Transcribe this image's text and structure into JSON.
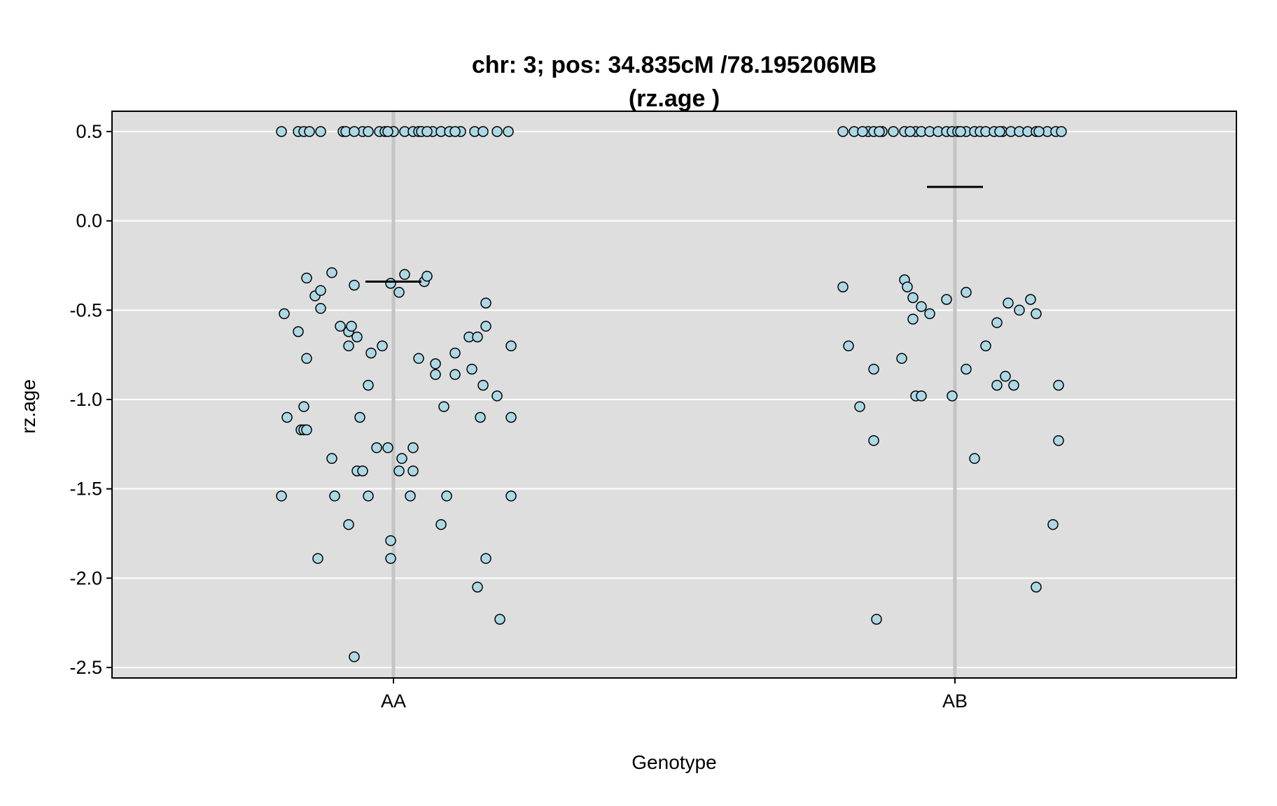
{
  "chart_data": {
    "type": "scatter",
    "title": "chr: 3; pos: 34.835cM /78.195206MB",
    "subtitle": "(rz.age )",
    "xlabel": "Genotype",
    "ylabel": "rz.age",
    "categories": [
      "AA",
      "AB"
    ],
    "ylim": [
      -2.55,
      0.62
    ],
    "yticks": [
      0.5,
      0.0,
      -0.5,
      -1.0,
      -1.5,
      -2.0,
      -2.5
    ],
    "ytick_labels": [
      "0.5",
      "0.0",
      "-0.5",
      "-1.0",
      "-1.5",
      "-2.0",
      "-2.5"
    ],
    "grid": true,
    "colors": {
      "panel_bg": "#dedede",
      "grid": "#ffffff",
      "category_line": "#c4c4c4",
      "point_fill": "#add8e6",
      "point_stroke": "#000000",
      "mean_line": "#000000"
    },
    "means": [
      {
        "category": "AA",
        "value": -0.34
      },
      {
        "category": "AB",
        "value": 0.19
      }
    ],
    "series": [
      {
        "category": "AA",
        "points": [
          [
            -0.4,
            0.5
          ],
          [
            -0.34,
            0.5
          ],
          [
            -0.32,
            0.5
          ],
          [
            -0.3,
            0.5
          ],
          [
            -0.26,
            0.5
          ],
          [
            -0.18,
            0.5
          ],
          [
            -0.17,
            0.5
          ],
          [
            -0.11,
            0.5
          ],
          [
            -0.05,
            0.5
          ],
          [
            -0.03,
            0.5
          ],
          [
            0.0,
            0.5
          ],
          [
            0.04,
            0.5
          ],
          [
            0.07,
            0.5
          ],
          [
            0.09,
            0.5
          ],
          [
            0.1,
            0.5
          ],
          [
            0.14,
            0.5
          ],
          [
            0.17,
            0.5
          ],
          [
            0.2,
            0.5
          ],
          [
            0.24,
            0.5
          ],
          [
            0.29,
            0.5
          ],
          [
            0.32,
            0.5
          ],
          [
            0.37,
            0.5
          ],
          [
            0.41,
            0.5
          ],
          [
            -0.02,
            0.5
          ],
          [
            -0.09,
            0.5
          ],
          [
            -0.14,
            0.5
          ],
          [
            0.12,
            0.5
          ],
          [
            0.22,
            0.5
          ],
          [
            -0.39,
            -0.52
          ],
          [
            -0.34,
            -0.62
          ],
          [
            -0.31,
            -0.32
          ],
          [
            -0.31,
            -0.77
          ],
          [
            -0.28,
            -0.42
          ],
          [
            -0.26,
            -0.39
          ],
          [
            -0.26,
            -0.49
          ],
          [
            -0.22,
            -0.29
          ],
          [
            -0.19,
            -0.59
          ],
          [
            -0.16,
            -0.62
          ],
          [
            -0.15,
            -0.59
          ],
          [
            -0.16,
            -0.7
          ],
          [
            -0.14,
            -0.36
          ],
          [
            -0.13,
            -0.65
          ],
          [
            -0.08,
            -0.74
          ],
          [
            -0.04,
            -0.7
          ],
          [
            -0.01,
            -0.35
          ],
          [
            0.02,
            -0.4
          ],
          [
            0.04,
            -0.3
          ],
          [
            0.11,
            -0.34
          ],
          [
            0.12,
            -0.31
          ],
          [
            -0.09,
            -0.92
          ],
          [
            0.09,
            -0.77
          ],
          [
            0.15,
            -0.8
          ],
          [
            0.15,
            -0.86
          ],
          [
            0.22,
            -0.74
          ],
          [
            0.22,
            -0.86
          ],
          [
            0.27,
            -0.65
          ],
          [
            0.3,
            -0.65
          ],
          [
            0.32,
            -0.92
          ],
          [
            0.33,
            -0.46
          ],
          [
            0.33,
            -0.59
          ],
          [
            0.37,
            -0.98
          ],
          [
            0.42,
            -0.7
          ],
          [
            0.28,
            -0.83
          ],
          [
            -0.38,
            -1.1
          ],
          [
            -0.33,
            -1.17
          ],
          [
            -0.32,
            -1.17
          ],
          [
            -0.31,
            -1.17
          ],
          [
            -0.32,
            -1.04
          ],
          [
            -0.12,
            -1.1
          ],
          [
            -0.06,
            -1.27
          ],
          [
            -0.02,
            -1.27
          ],
          [
            0.07,
            -1.27
          ],
          [
            0.18,
            -1.04
          ],
          [
            0.31,
            -1.1
          ],
          [
            0.42,
            -1.1
          ],
          [
            -0.4,
            -1.54
          ],
          [
            -0.22,
            -1.33
          ],
          [
            -0.21,
            -1.54
          ],
          [
            -0.16,
            -1.7
          ],
          [
            -0.13,
            -1.4
          ],
          [
            -0.11,
            -1.4
          ],
          [
            -0.09,
            -1.54
          ],
          [
            0.02,
            -1.4
          ],
          [
            0.03,
            -1.33
          ],
          [
            0.06,
            -1.54
          ],
          [
            0.07,
            -1.4
          ],
          [
            0.17,
            -1.7
          ],
          [
            0.19,
            -1.54
          ],
          [
            0.42,
            -1.54
          ],
          [
            -0.27,
            -1.89
          ],
          [
            -0.01,
            -1.79
          ],
          [
            -0.01,
            -1.89
          ],
          [
            0.33,
            -1.89
          ],
          [
            0.3,
            -2.05
          ],
          [
            0.38,
            -2.23
          ],
          [
            -0.14,
            -2.44
          ]
        ]
      },
      {
        "category": "AB",
        "points": [
          [
            -0.4,
            0.5
          ],
          [
            -0.36,
            0.5
          ],
          [
            -0.31,
            0.5
          ],
          [
            -0.29,
            0.5
          ],
          [
            -0.26,
            0.5
          ],
          [
            -0.22,
            0.5
          ],
          [
            -0.18,
            0.5
          ],
          [
            -0.14,
            0.5
          ],
          [
            -0.12,
            0.5
          ],
          [
            -0.09,
            0.5
          ],
          [
            -0.06,
            0.5
          ],
          [
            -0.03,
            0.5
          ],
          [
            -0.01,
            0.5
          ],
          [
            0.01,
            0.5
          ],
          [
            0.04,
            0.5
          ],
          [
            0.07,
            0.5
          ],
          [
            0.09,
            0.5
          ],
          [
            0.11,
            0.5
          ],
          [
            0.14,
            0.5
          ],
          [
            0.17,
            0.5
          ],
          [
            0.2,
            0.5
          ],
          [
            0.23,
            0.5
          ],
          [
            0.26,
            0.5
          ],
          [
            0.29,
            0.5
          ],
          [
            0.33,
            0.5
          ],
          [
            0.36,
            0.5
          ],
          [
            0.38,
            0.5
          ],
          [
            -0.33,
            0.5
          ],
          [
            -0.27,
            0.5
          ],
          [
            -0.16,
            0.5
          ],
          [
            0.02,
            0.5
          ],
          [
            0.16,
            0.5
          ],
          [
            0.3,
            0.5
          ],
          [
            -0.4,
            -0.37
          ],
          [
            -0.38,
            -0.7
          ],
          [
            -0.34,
            -1.04
          ],
          [
            -0.29,
            -0.83
          ],
          [
            -0.29,
            -1.23
          ],
          [
            -0.19,
            -0.77
          ],
          [
            -0.18,
            -0.33
          ],
          [
            -0.17,
            -0.37
          ],
          [
            -0.15,
            -0.43
          ],
          [
            -0.15,
            -0.55
          ],
          [
            -0.12,
            -0.48
          ],
          [
            -0.09,
            -0.52
          ],
          [
            -0.03,
            -0.44
          ],
          [
            -0.14,
            -0.98
          ],
          [
            -0.12,
            -0.98
          ],
          [
            -0.01,
            -0.98
          ],
          [
            0.04,
            -0.4
          ],
          [
            0.04,
            -0.83
          ],
          [
            0.11,
            -0.7
          ],
          [
            0.15,
            -0.57
          ],
          [
            0.19,
            -0.46
          ],
          [
            0.23,
            -0.5
          ],
          [
            0.27,
            -0.44
          ],
          [
            0.29,
            -0.52
          ],
          [
            0.18,
            -0.87
          ],
          [
            0.15,
            -0.92
          ],
          [
            0.21,
            -0.92
          ],
          [
            0.37,
            -0.92
          ],
          [
            0.07,
            -1.33
          ],
          [
            0.37,
            -1.23
          ],
          [
            0.35,
            -1.7
          ],
          [
            0.29,
            -2.05
          ],
          [
            -0.28,
            -2.23
          ]
        ]
      }
    ]
  }
}
